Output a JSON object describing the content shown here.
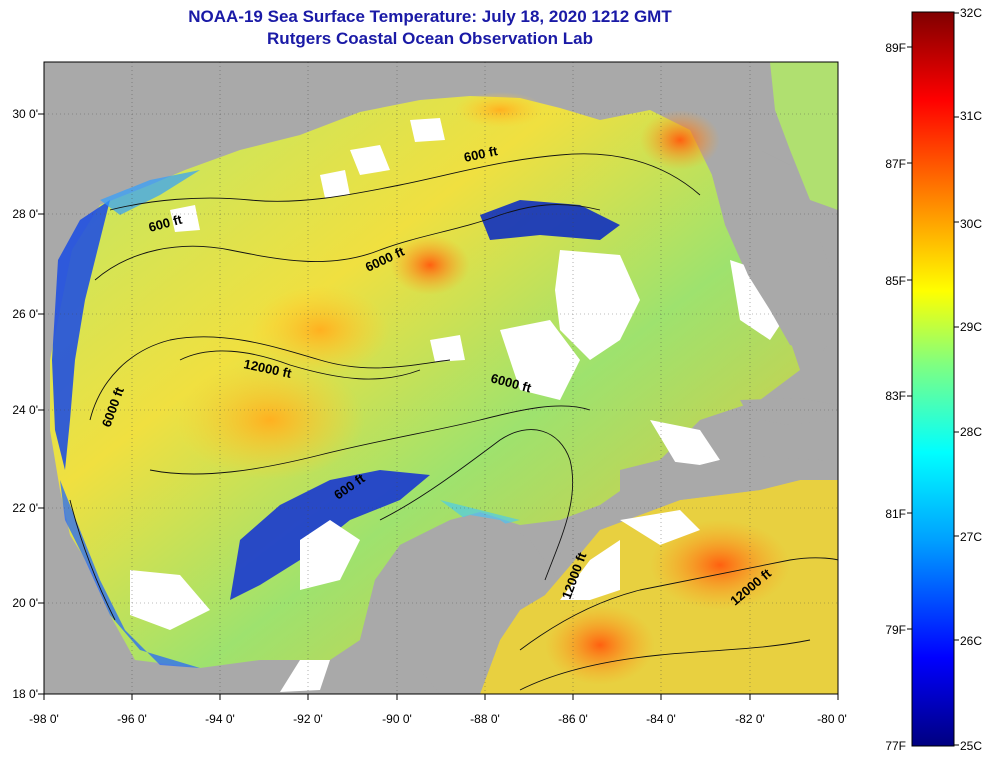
{
  "title": "NOAA-19 Sea Surface Temperature:  July 18, 2020 1212 GMT",
  "subtitle": "Rutgers Coastal Ocean Observation Lab",
  "map": {
    "lon_range": [
      -98,
      -80
    ],
    "lat_range": [
      18,
      31
    ],
    "lon_ticks": [
      "-98 0'",
      "-96 0'",
      "-94 0'",
      "-92 0'",
      "-90 0'",
      "-88 0'",
      "-86 0'",
      "-84 0'",
      "-82 0'",
      "-80 0'"
    ],
    "lat_ticks": [
      "18 0'",
      "20 0'",
      "22 0'",
      "24 0'",
      "26 0'",
      "28 0'",
      "30 0'"
    ],
    "land_color": "#a9a9a9",
    "cloud_color": "#ffffff",
    "contour_labels": [
      "600 ft",
      "600 ft",
      "6000 ft",
      "12000 ft",
      "6000 ft",
      "6000 ft",
      "600 ft",
      "12000 ft",
      "12000 ft"
    ]
  },
  "colorbar": {
    "range_c": [
      25,
      32
    ],
    "celsius_labels": [
      "32C",
      "31C",
      "30C",
      "29C",
      "28C",
      "27C",
      "26C",
      "25C"
    ],
    "fahrenheit_labels": [
      "89F",
      "87F",
      "85F",
      "83F",
      "81F",
      "79F",
      "77F"
    ],
    "colors": [
      "#000080",
      "#0000ff",
      "#00a0ff",
      "#00ffff",
      "#80ff80",
      "#ffff00",
      "#ff8000",
      "#ff0000",
      "#800000"
    ]
  }
}
